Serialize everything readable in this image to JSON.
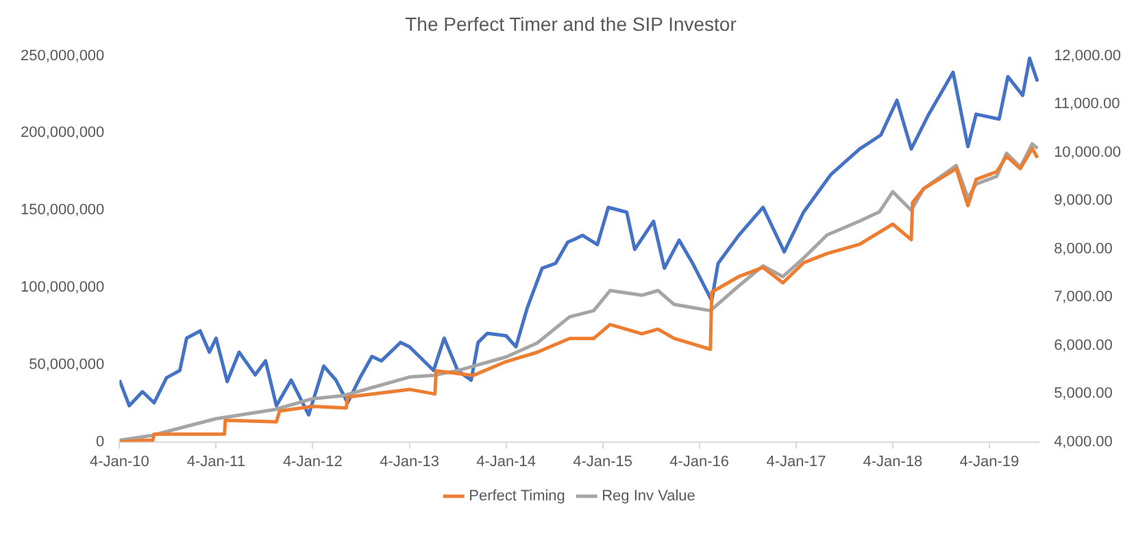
{
  "chart_data": {
    "type": "line",
    "title": "The Perfect Timer and the SIP Investor",
    "legend": "bottom",
    "marker": "none",
    "line_style": "solid",
    "xlim": [
      "2010-01-04",
      "2019-07-10"
    ],
    "xticks": [
      {
        "value": "2010-01-04",
        "label": "4-Jan-10"
      },
      {
        "value": "2011-01-04",
        "label": "4-Jan-11"
      },
      {
        "value": "2012-01-04",
        "label": "4-Jan-12"
      },
      {
        "value": "2013-01-04",
        "label": "4-Jan-13"
      },
      {
        "value": "2014-01-04",
        "label": "4-Jan-14"
      },
      {
        "value": "2015-01-04",
        "label": "4-Jan-15"
      },
      {
        "value": "2016-01-04",
        "label": "4-Jan-16"
      },
      {
        "value": "2017-01-04",
        "label": "4-Jan-17"
      },
      {
        "value": "2018-01-04",
        "label": "4-Jan-18"
      },
      {
        "value": "2019-01-04",
        "label": "4-Jan-19"
      }
    ],
    "ylim": [
      0,
      250000000
    ],
    "yticks": [
      0,
      {
        "value": 50000000,
        "label": "50,000,000"
      },
      {
        "value": 100000000,
        "label": "100,000,000"
      },
      {
        "value": 150000000,
        "label": "150,000,000"
      },
      {
        "value": 200000000,
        "label": "200,000,000"
      },
      {
        "value": 250000000,
        "label": "250,000,000"
      }
    ],
    "y2lim": [
      4000,
      12000
    ],
    "y2ticks": [
      {
        "value": 4000,
        "label": "4,000.00"
      },
      {
        "value": 5000,
        "label": "5,000.00"
      },
      {
        "value": 6000,
        "label": "6,000.00"
      },
      {
        "value": 7000,
        "label": "7,000.00"
      },
      {
        "value": 8000,
        "label": "8,000.00"
      },
      {
        "value": 9000,
        "label": "9,000.00"
      },
      {
        "value": 10000,
        "label": "10,000.00"
      },
      {
        "value": 11000,
        "label": "11,000.00"
      },
      {
        "value": 12000,
        "label": "12,000.00"
      }
    ],
    "series": [
      {
        "name": "Perfect Timing",
        "color": "#ed7d31",
        "x": [
          "2010-01-04",
          "2010-04-01",
          "2010-05-10",
          "2010-05-15",
          "2011-02-05",
          "2011-02-08",
          "2011-08-20",
          "2011-09-01",
          "2012-01-04",
          "2012-05-10",
          "2012-05-15",
          "2013-01-04",
          "2013-04-10",
          "2013-04-15",
          "2013-09-01",
          "2014-01-04",
          "2014-05-01",
          "2014-09-01",
          "2014-12-01",
          "2015-02-01",
          "2015-06-01",
          "2015-08-01",
          "2015-10-01",
          "2016-02-15",
          "2016-02-20",
          "2016-06-01",
          "2016-09-01",
          "2016-11-15",
          "2017-02-01",
          "2017-05-01",
          "2017-09-01",
          "2018-01-04",
          "2018-03-15",
          "2018-03-20",
          "2018-05-01",
          "2018-09-01",
          "2018-10-15",
          "2018-11-15",
          "2019-02-01",
          "2019-03-10",
          "2019-05-01",
          "2019-06-15",
          "2019-07-05"
        ],
        "values": [
          0,
          1000000,
          1000000,
          5000000,
          5000000,
          14000000,
          13000000,
          20000000,
          23000000,
          22000000,
          29000000,
          34000000,
          31000000,
          46000000,
          43000000,
          52000000,
          58000000,
          67000000,
          67000000,
          76000000,
          70000000,
          73000000,
          67000000,
          60000000,
          97000000,
          107000000,
          113000000,
          103000000,
          116000000,
          122000000,
          128000000,
          141000000,
          131000000,
          155000000,
          164000000,
          177000000,
          153000000,
          170000000,
          175000000,
          185000000,
          177000000,
          190000000,
          184000000
        ]
      },
      {
        "name": "Reg Inv Value",
        "color": "#a5a5a5",
        "x": [
          "2010-01-04",
          "2010-05-01",
          "2011-01-04",
          "2011-08-15",
          "2012-01-04",
          "2012-05-01",
          "2013-01-04",
          "2013-04-01",
          "2013-07-01",
          "2013-09-01",
          "2014-01-04",
          "2014-05-01",
          "2014-09-01",
          "2014-12-01",
          "2015-02-01",
          "2015-06-01",
          "2015-08-01",
          "2015-10-01",
          "2016-02-15",
          "2016-06-01",
          "2016-09-01",
          "2016-11-15",
          "2017-02-01",
          "2017-05-01",
          "2017-09-01",
          "2017-11-15",
          "2018-01-04",
          "2018-03-15",
          "2018-05-01",
          "2018-09-01",
          "2018-10-15",
          "2018-11-15",
          "2019-02-01",
          "2019-03-10",
          "2019-05-01",
          "2019-06-15",
          "2019-07-05"
        ],
        "values": [
          1000000,
          4000000,
          15000000,
          21000000,
          28000000,
          30000000,
          42000000,
          43000000,
          46000000,
          49000000,
          55000000,
          64000000,
          81000000,
          85000000,
          98000000,
          95000000,
          98000000,
          89000000,
          85000000,
          101000000,
          114000000,
          107000000,
          119000000,
          134000000,
          143000000,
          149000000,
          162000000,
          150000000,
          164000000,
          179000000,
          158000000,
          167000000,
          172000000,
          187000000,
          178000000,
          193000000,
          190000000
        ]
      },
      {
        "color": "#4472c4",
        "axis": "y2",
        "x": [
          "2010-01-04",
          "2010-02-10",
          "2010-04-01",
          "2010-05-15",
          "2010-07-01",
          "2010-08-20",
          "2010-09-15",
          "2010-11-05",
          "2010-12-10",
          "2011-01-04",
          "2011-02-15",
          "2011-04-01",
          "2011-06-01",
          "2011-07-10",
          "2011-08-20",
          "2011-10-15",
          "2011-12-20",
          "2012-02-15",
          "2012-04-01",
          "2012-05-15",
          "2012-07-01",
          "2012-08-15",
          "2012-09-20",
          "2012-12-01",
          "2013-01-04",
          "2013-04-05",
          "2013-05-15",
          "2013-07-05",
          "2013-08-25",
          "2013-09-20",
          "2013-10-25",
          "2014-01-04",
          "2014-02-10",
          "2014-03-25",
          "2014-05-20",
          "2014-07-10",
          "2014-08-25",
          "2014-09-20",
          "2014-10-20",
          "2014-12-15",
          "2015-01-25",
          "2015-04-05",
          "2015-05-05",
          "2015-07-15",
          "2015-08-25",
          "2015-10-20",
          "2015-12-10",
          "2016-02-20",
          "2016-03-15",
          "2016-06-01",
          "2016-09-01",
          "2016-11-20",
          "2017-02-01",
          "2017-05-15",
          "2017-09-01",
          "2017-11-20",
          "2018-01-20",
          "2018-03-15",
          "2018-05-20",
          "2018-08-20",
          "2018-10-15",
          "2018-11-15",
          "2019-02-10",
          "2019-03-15",
          "2019-05-10",
          "2019-06-05",
          "2019-07-05"
        ],
        "values": [
          5280,
          4750,
          5040,
          4810,
          5330,
          5480,
          6150,
          6300,
          5860,
          6150,
          5250,
          5860,
          5390,
          5680,
          4750,
          5280,
          4560,
          5570,
          5280,
          4810,
          5330,
          5770,
          5680,
          6060,
          5970,
          5480,
          6150,
          5480,
          5280,
          6060,
          6250,
          6200,
          5970,
          6780,
          7600,
          7700,
          8140,
          8200,
          8280,
          8090,
          8860,
          8760,
          7990,
          8570,
          7600,
          8180,
          7700,
          6930,
          7700,
          8280,
          8860,
          7940,
          8760,
          9540,
          10070,
          10360,
          11080,
          10070,
          10790,
          11660,
          10120,
          10790,
          10690,
          11570,
          11180,
          11950,
          11470
        ]
      }
    ]
  }
}
